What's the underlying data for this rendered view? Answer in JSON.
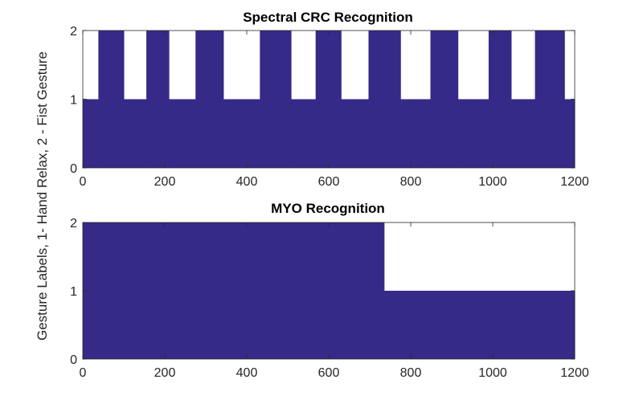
{
  "figure": {
    "ylabel": "Gesture Labels, 1- Hand Relax, 2 - Fist Gesture",
    "fill_color": "#352a87",
    "background_color": "#ffffff",
    "axis_color": "#262626"
  },
  "chart_data": [
    {
      "type": "area",
      "title": "Spectral CRC Recognition",
      "xlabel": "",
      "xlim": [
        0,
        1200
      ],
      "ylim": [
        0,
        2
      ],
      "xticks": [
        "0",
        "200",
        "400",
        "600",
        "800",
        "1000",
        "1200"
      ],
      "yticks": [
        "0",
        "1",
        "2"
      ],
      "grid": false,
      "segments": [
        {
          "x_start": 0,
          "x_end": 38,
          "value": 1
        },
        {
          "x_start": 38,
          "x_end": 100,
          "value": 2
        },
        {
          "x_start": 100,
          "x_end": 155,
          "value": 1
        },
        {
          "x_start": 155,
          "x_end": 210,
          "value": 2
        },
        {
          "x_start": 210,
          "x_end": 275,
          "value": 1
        },
        {
          "x_start": 275,
          "x_end": 343,
          "value": 2
        },
        {
          "x_start": 343,
          "x_end": 432,
          "value": 1
        },
        {
          "x_start": 432,
          "x_end": 508,
          "value": 2
        },
        {
          "x_start": 508,
          "x_end": 568,
          "value": 1
        },
        {
          "x_start": 568,
          "x_end": 630,
          "value": 2
        },
        {
          "x_start": 630,
          "x_end": 697,
          "value": 1
        },
        {
          "x_start": 697,
          "x_end": 775,
          "value": 2
        },
        {
          "x_start": 775,
          "x_end": 848,
          "value": 1
        },
        {
          "x_start": 848,
          "x_end": 915,
          "value": 2
        },
        {
          "x_start": 915,
          "x_end": 990,
          "value": 1
        },
        {
          "x_start": 990,
          "x_end": 1045,
          "value": 2
        },
        {
          "x_start": 1045,
          "x_end": 1103,
          "value": 1
        },
        {
          "x_start": 1103,
          "x_end": 1175,
          "value": 2
        },
        {
          "x_start": 1175,
          "x_end": 1200,
          "value": 1
        }
      ]
    },
    {
      "type": "area",
      "title": "MYO Recognition",
      "xlabel": "",
      "xlim": [
        0,
        1200
      ],
      "ylim": [
        0,
        2
      ],
      "xticks": [
        "0",
        "200",
        "400",
        "600",
        "800",
        "1000",
        "1200"
      ],
      "yticks": [
        "0",
        "1",
        "2"
      ],
      "grid": false,
      "segments": [
        {
          "x_start": 0,
          "x_end": 735,
          "value": 2
        },
        {
          "x_start": 735,
          "x_end": 1200,
          "value": 1
        }
      ]
    }
  ]
}
